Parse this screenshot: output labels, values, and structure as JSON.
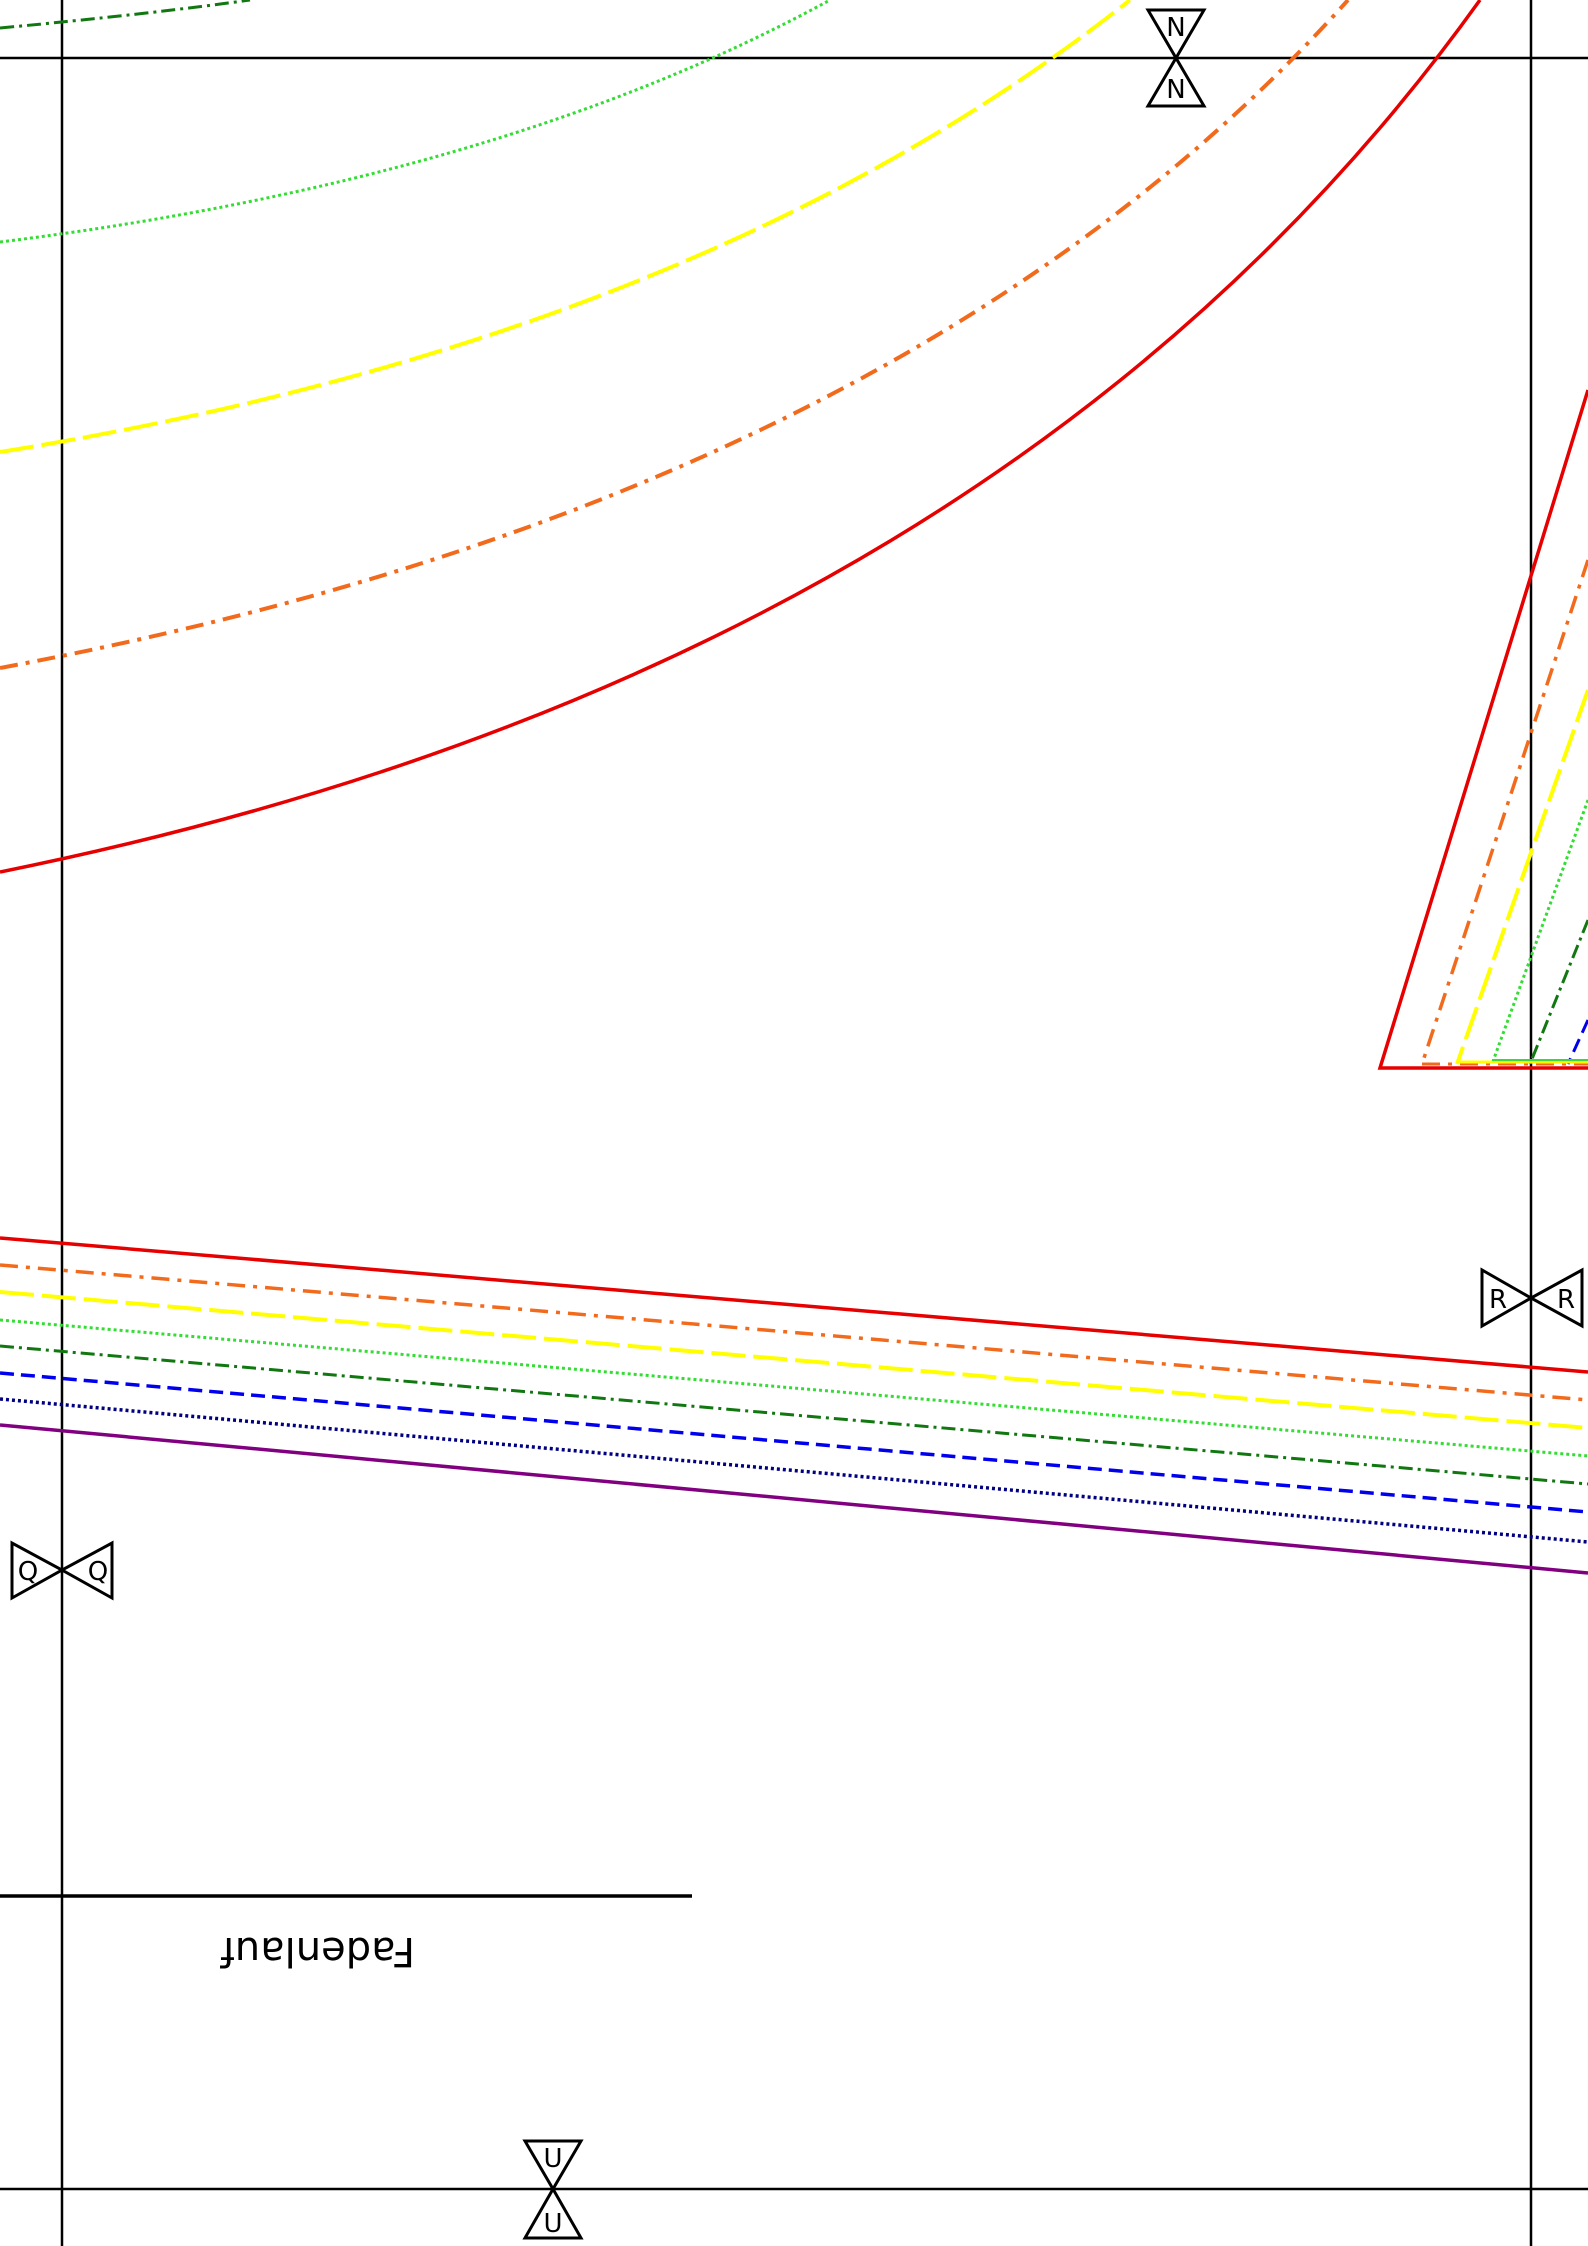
{
  "document": {
    "type": "sewing-pattern-tile",
    "grainline_label": "Fadenlauf",
    "grainline_text_rotation_deg": 180
  },
  "match_markers": [
    {
      "id": "N",
      "labels": [
        "N",
        "N"
      ]
    },
    {
      "id": "R",
      "labels": [
        "R",
        "R"
      ]
    },
    {
      "id": "Q",
      "labels": [
        "Q",
        "Q"
      ]
    },
    {
      "id": "U",
      "labels": [
        "U",
        "U"
      ]
    }
  ],
  "size_lines": [
    {
      "name": "size-red",
      "color": "#e60000",
      "style": "solid"
    },
    {
      "name": "size-orange",
      "color": "#f26b1d",
      "style": "dash-dot"
    },
    {
      "name": "size-yellow",
      "color": "#ffff00",
      "style": "long-dash"
    },
    {
      "name": "size-lightgreen",
      "color": "#33dd33",
      "style": "dotted"
    },
    {
      "name": "size-darkgreen",
      "color": "#117711",
      "style": "dash-dot"
    },
    {
      "name": "size-blue",
      "color": "#0000ee",
      "style": "dashed"
    },
    {
      "name": "size-navy",
      "color": "#000080",
      "style": "dotted"
    },
    {
      "name": "size-purple",
      "color": "#800080",
      "style": "solid"
    }
  ]
}
